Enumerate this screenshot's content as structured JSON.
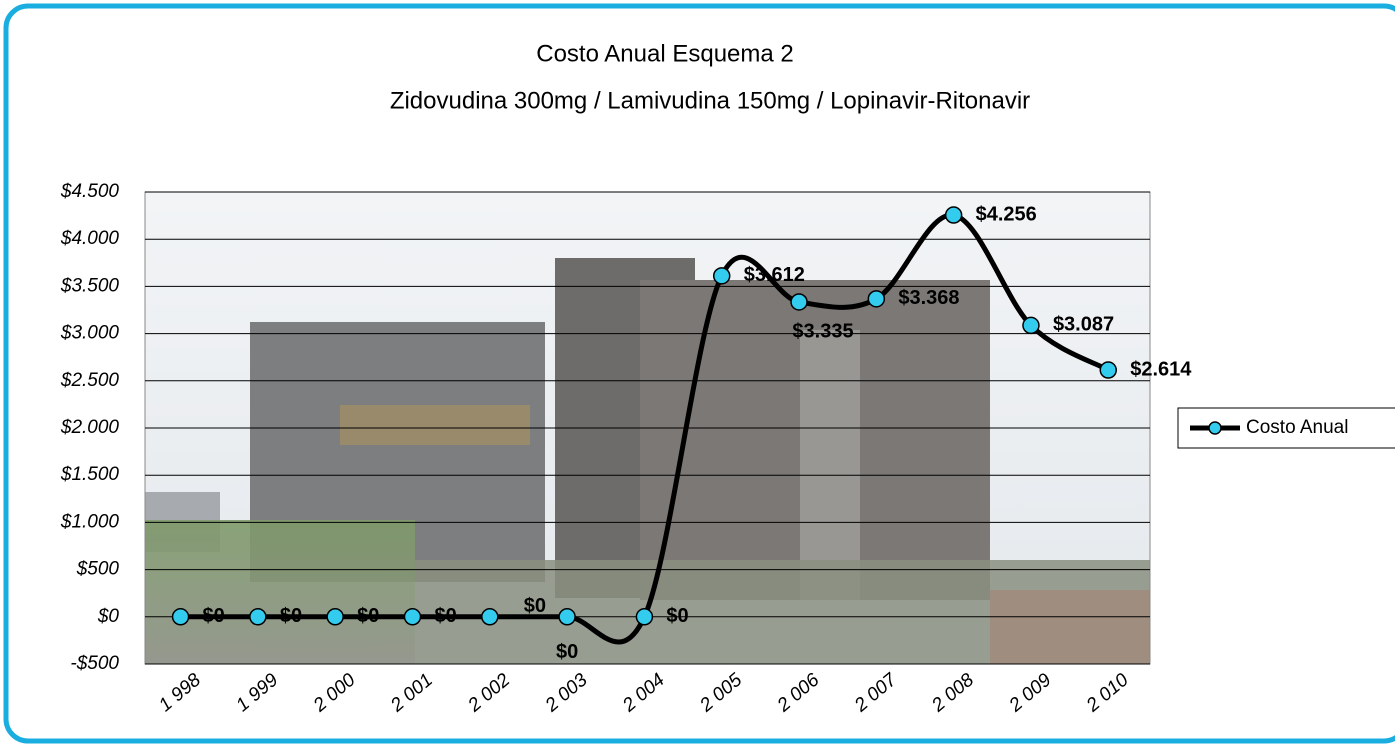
{
  "chart_data": {
    "type": "line",
    "title": "Costo Anual Esquema 2",
    "subtitle": "Zidovudina 300mg / Lamivudina 150mg / Lopinavir-Ritonavir",
    "categories": [
      "1 998",
      "1 999",
      "2 000",
      "2 001",
      "2 002",
      "2 003",
      "2 004",
      "2 005",
      "2 006",
      "2 007",
      "2 008",
      "2 009",
      "2 010"
    ],
    "series": [
      {
        "name": "Costo Anual",
        "color": "#000000",
        "marker_color": "#33ccee",
        "values": [
          0,
          0,
          0,
          0,
          0,
          0,
          0,
          3612,
          3335,
          3368,
          4256,
          3087,
          2614
        ],
        "value_labels": [
          "$0",
          "$0",
          "$0",
          "$0",
          "$0",
          "$0",
          "$0",
          "$3.612",
          "$3.335",
          "$3.368",
          "$4.256",
          "$3.087",
          "$2.614"
        ]
      }
    ],
    "ylim": [
      -500,
      4500
    ],
    "yticks": [
      {
        "value": -500,
        "label": "-$500"
      },
      {
        "value": 0,
        "label": "$0"
      },
      {
        "value": 500,
        "label": "$500"
      },
      {
        "value": 1000,
        "label": "$1.000"
      },
      {
        "value": 1500,
        "label": "$1.500"
      },
      {
        "value": 2000,
        "label": "$2.000"
      },
      {
        "value": 2500,
        "label": "$2.500"
      },
      {
        "value": 3000,
        "label": "$3.000"
      },
      {
        "value": 3500,
        "label": "$3.500"
      },
      {
        "value": 4000,
        "label": "$4.000"
      },
      {
        "value": 4500,
        "label": "$4.500"
      }
    ],
    "grid": true,
    "smooth": true,
    "legend": "right"
  }
}
